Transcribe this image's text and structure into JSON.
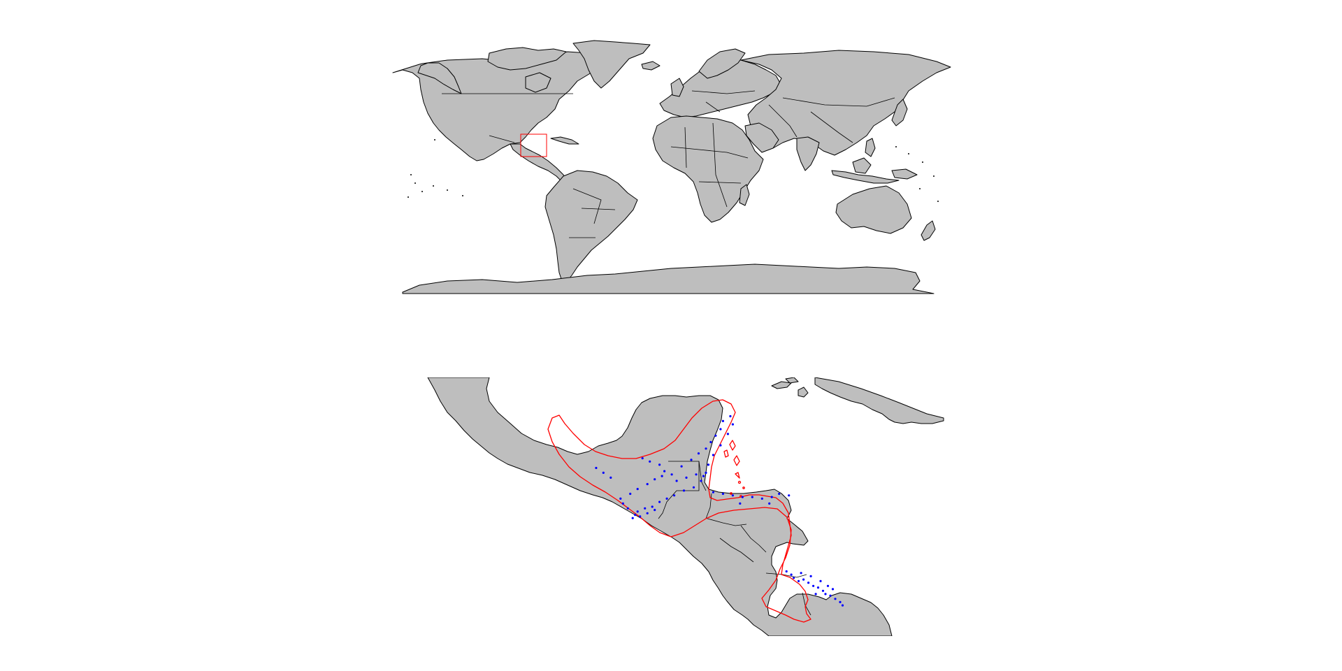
{
  "figure": {
    "panels": [
      "world-overview",
      "central-america-detail"
    ]
  },
  "colors": {
    "land": "#bebebe",
    "outline": "#000000",
    "range_outline": "#ff0000",
    "inset_box": "#ff0000",
    "occurrence_points": "#0000ff"
  },
  "world_map": {
    "projection": "equirectangular",
    "inset_extent": {
      "lon": [
        -100,
        -80
      ],
      "lat": [
        5,
        22
      ]
    }
  },
  "detail_map": {
    "extent": {
      "lon": [
        -100,
        -78
      ],
      "lat": [
        7,
        23
      ]
    },
    "range_polygon_color": "#ff0000",
    "occurrences": [
      [
        -91.2,
        18.0
      ],
      [
        -90.9,
        17.8
      ],
      [
        -90.5,
        17.6
      ],
      [
        -90.3,
        17.2
      ],
      [
        -90.0,
        17.0
      ],
      [
        -89.6,
        17.5
      ],
      [
        -89.2,
        17.9
      ],
      [
        -88.9,
        18.3
      ],
      [
        -88.6,
        18.6
      ],
      [
        -88.4,
        19.0
      ],
      [
        -88.2,
        19.4
      ],
      [
        -88.0,
        19.8
      ],
      [
        -87.9,
        20.3
      ],
      [
        -87.6,
        20.6
      ],
      [
        -87.5,
        20.1
      ],
      [
        -87.7,
        19.5
      ],
      [
        -88.0,
        18.8
      ],
      [
        -88.3,
        18.2
      ],
      [
        -88.5,
        17.6
      ],
      [
        -88.6,
        17.1
      ],
      [
        -88.8,
        16.6
      ],
      [
        -89.1,
        16.2
      ],
      [
        -89.5,
        16.0
      ],
      [
        -89.9,
        15.7
      ],
      [
        -90.2,
        15.5
      ],
      [
        -90.5,
        15.3
      ],
      [
        -90.8,
        15.0
      ],
      [
        -91.1,
        14.9
      ],
      [
        -91.4,
        14.7
      ],
      [
        -91.5,
        14.5
      ],
      [
        -91.6,
        14.3
      ],
      [
        -91.3,
        14.4
      ],
      [
        -91.0,
        14.6
      ],
      [
        -90.7,
        14.8
      ],
      [
        -91.8,
        14.9
      ],
      [
        -92.0,
        15.2
      ],
      [
        -92.1,
        15.5
      ],
      [
        -91.7,
        15.8
      ],
      [
        -91.4,
        16.1
      ],
      [
        -91.0,
        16.4
      ],
      [
        -90.7,
        16.7
      ],
      [
        -90.4,
        16.9
      ],
      [
        -89.8,
        16.6
      ],
      [
        -89.4,
        16.8
      ],
      [
        -89.0,
        17.0
      ],
      [
        -88.7,
        16.9
      ],
      [
        -88.3,
        15.9
      ],
      [
        -87.9,
        15.8
      ],
      [
        -87.5,
        15.7
      ],
      [
        -87.1,
        15.6
      ],
      [
        -86.7,
        15.6
      ],
      [
        -86.3,
        15.5
      ],
      [
        -85.9,
        15.6
      ],
      [
        -85.6,
        15.8
      ],
      [
        -85.2,
        15.7
      ],
      [
        -86.0,
        15.2
      ],
      [
        -87.2,
        15.2
      ],
      [
        -92.5,
        16.8
      ],
      [
        -92.8,
        17.1
      ],
      [
        -93.1,
        17.4
      ],
      [
        -85.1,
        10.8
      ],
      [
        -85.0,
        10.6
      ],
      [
        -84.8,
        10.4
      ],
      [
        -84.6,
        10.5
      ],
      [
        -84.4,
        10.3
      ],
      [
        -84.2,
        10.1
      ],
      [
        -84.0,
        10.0
      ],
      [
        -83.8,
        9.8
      ],
      [
        -83.7,
        9.6
      ],
      [
        -83.5,
        9.5
      ],
      [
        -83.3,
        9.3
      ],
      [
        -83.1,
        9.1
      ],
      [
        -83.0,
        8.9
      ],
      [
        -84.3,
        10.7
      ],
      [
        -84.7,
        10.9
      ],
      [
        -85.3,
        11.0
      ],
      [
        -83.9,
        10.4
      ],
      [
        -83.6,
        10.1
      ],
      [
        -84.1,
        9.6
      ],
      [
        -83.4,
        9.9
      ]
    ]
  }
}
